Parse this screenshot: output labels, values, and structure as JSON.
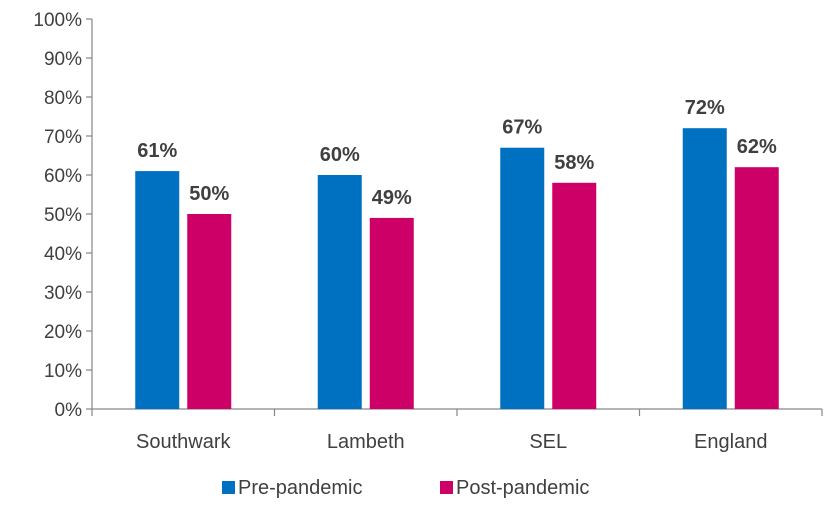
{
  "chart_data": {
    "type": "bar",
    "categories": [
      "Southwark",
      "Lambeth",
      "SEL",
      "England"
    ],
    "series": [
      {
        "name": "Pre-pandemic",
        "values": [
          61,
          60,
          67,
          72
        ],
        "labels": [
          "61%",
          "60%",
          "67%",
          "72%"
        ],
        "color": "#0070C0"
      },
      {
        "name": "Post-pandemic",
        "values": [
          50,
          49,
          58,
          62
        ],
        "labels": [
          "50%",
          "49%",
          "58%",
          "62%"
        ],
        "color": "#CC0066"
      }
    ],
    "ylim": [
      0,
      100
    ],
    "yticks": [
      0,
      10,
      20,
      30,
      40,
      50,
      60,
      70,
      80,
      90,
      100
    ],
    "ytick_labels": [
      "0%",
      "10%",
      "20%",
      "30%",
      "40%",
      "50%",
      "60%",
      "70%",
      "80%",
      "90%",
      "100%"
    ],
    "grid": false,
    "legend": "bottom-center",
    "title": "",
    "xlabel": "",
    "ylabel": ""
  }
}
